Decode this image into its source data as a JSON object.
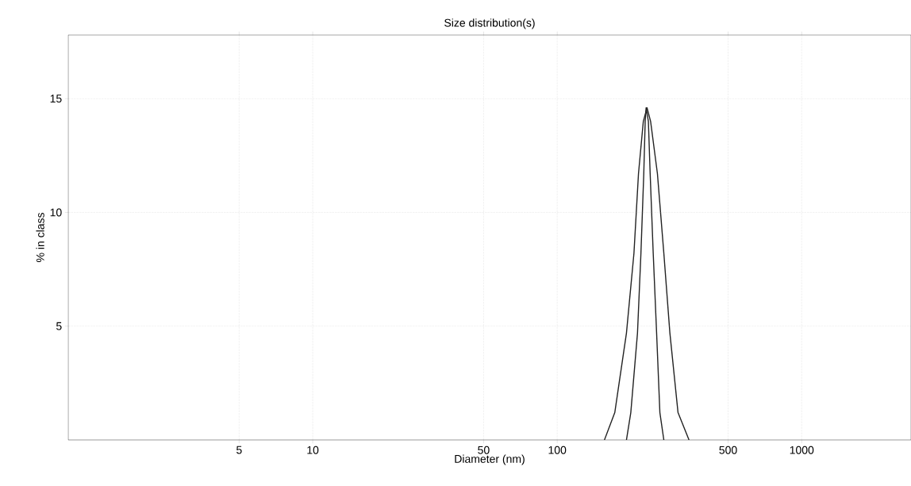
{
  "chart_data": {
    "type": "line",
    "title": "Size distribution(s)",
    "xlabel": "Diameter (nm)",
    "ylabel": "% in class",
    "log": "x",
    "grid": true,
    "marker": "none",
    "line_style": "solid",
    "xlim": [
      1,
      2800
    ],
    "xticks": [
      5,
      10,
      50,
      100,
      500,
      1000
    ],
    "ylim": [
      0,
      17.8
    ],
    "yticks": [
      5,
      10,
      15
    ],
    "series": [
      {
        "color": "#222222",
        "x": [
          156,
          172,
          192,
          206,
          215,
          225,
          233,
          241,
          257,
          273,
          289,
          312,
          346
        ],
        "values": [
          0,
          1.2,
          4.7,
          8.2,
          11.7,
          14.0,
          14.6,
          14.0,
          11.7,
          8.2,
          4.7,
          1.2,
          0
        ]
      },
      {
        "color": "#222222",
        "x": [
          192,
          200,
          213,
          220,
          226,
          229,
          231,
          236,
          240,
          247,
          255,
          263,
          273
        ],
        "values": [
          0,
          1.2,
          4.7,
          8.2,
          11.7,
          14.0,
          14.6,
          14.0,
          11.7,
          8.2,
          4.7,
          1.2,
          0
        ]
      }
    ]
  }
}
